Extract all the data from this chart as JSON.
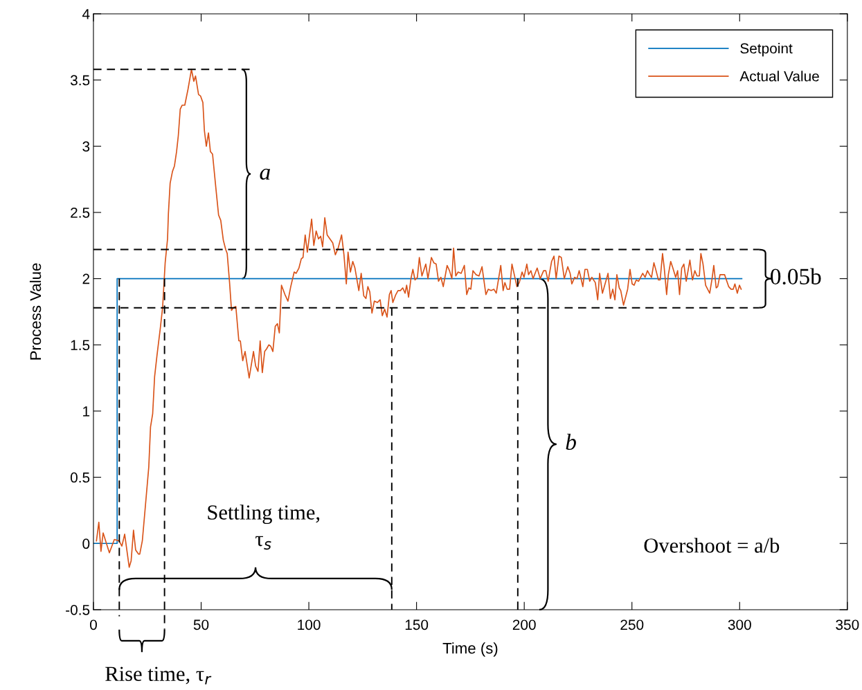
{
  "chart_data": {
    "type": "line",
    "xlabel": "Time (s)",
    "ylabel": "Process Value",
    "xlim": [
      0,
      350
    ],
    "xticks": [
      0,
      50,
      100,
      150,
      200,
      250,
      300,
      350
    ],
    "ylim": [
      -0.5,
      4
    ],
    "yticks": [
      -0.5,
      0,
      0.5,
      1,
      1.5,
      2,
      2.5,
      3,
      3.5,
      4
    ],
    "grid": false,
    "legend": "top right",
    "marker": "none",
    "line_style": "solid",
    "series": [
      {
        "name": "Setpoint",
        "color": "#0072bd",
        "type": "step",
        "x": [
          0,
          11,
          11,
          301
        ],
        "values": [
          0,
          0,
          2,
          2
        ]
      },
      {
        "name": "Actual Value",
        "color": "#d95319",
        "type": "line",
        "x": [
          1.4,
          2.5,
          3.5,
          4.5,
          7.4,
          9.7,
          11.9,
          13.2,
          14.5,
          16.6,
          17.5,
          18.6,
          19.6,
          20.9,
          21.5,
          22.7,
          24.1,
          25.7,
          26.5,
          27.5,
          28.4,
          29.5,
          31,
          32.1,
          33.3,
          34.4,
          34.8,
          35.6,
          36.7,
          37.6,
          38.6,
          39.4,
          40.3,
          41.2,
          42.4,
          43.9,
          45.5,
          46.6,
          47.4,
          48.8,
          49.7,
          50.8,
          51.5,
          52.4,
          53.4,
          54.3,
          55.3,
          56.8,
          58.1,
          59.1,
          60.3,
          61.4,
          62.1,
          63.2,
          64.1,
          64.9,
          66.1,
          67.5,
          68.2,
          69.3,
          70.4,
          72.3,
          74.3,
          75.3,
          76.4,
          77.4,
          78.4,
          79.5,
          80.4,
          81.4,
          82.3,
          83.3,
          84.4,
          85.4,
          86.3,
          87.3,
          88.9,
          90.3,
          91.6,
          93.2,
          94.1,
          95.4,
          96.5,
          97.3,
          98.3,
          99.3,
          101.3,
          102.3,
          103.4,
          104.5,
          105.5,
          106.4,
          107.4,
          108.5,
          109.8,
          111.1,
          112.3,
          113.6,
          115.2,
          116.3,
          117.4,
          118.2,
          119.3,
          120.4,
          121.4,
          123.2,
          124.3,
          125.5,
          126.5,
          127.4,
          128.3,
          129.3,
          130.4,
          131.8,
          133.1,
          134.1,
          135.2,
          136.3,
          137.4,
          138.2,
          139,
          140.4,
          141.4,
          142.5,
          143.6,
          144.7,
          145.4,
          146.3,
          147.4,
          148.3,
          149.3,
          150.4,
          151.3,
          152.5,
          154.3,
          155.3,
          156.9,
          158,
          159.1,
          160.2,
          161.3,
          162.4,
          164.2,
          165.3,
          166.4,
          167.2,
          168.2,
          169.3,
          170.7,
          172.2,
          173.3,
          174.3,
          175.2,
          176.2,
          177.6,
          179,
          180.4,
          182.2,
          183.3,
          184.6,
          185.9,
          187,
          189.1,
          190.2,
          191,
          192.1,
          193.2,
          194.3,
          196.6,
          197.7,
          199,
          199.9,
          201.2,
          202,
          203.1,
          204.1,
          206,
          207.4,
          209,
          210,
          211.1,
          212.7,
          213.8,
          214.8,
          216.1,
          217.2,
          218.6,
          220.2,
          221.3,
          222.1,
          223.4,
          224.5,
          225.5,
          226.1,
          227.2,
          228.2,
          229.3,
          230.4,
          231.4,
          233,
          234.1,
          235,
          236.3,
          238.9,
          240,
          241.1,
          242.1,
          243,
          244.1,
          244.8,
          246.1,
          248,
          249.1,
          250.1,
          251,
          252,
          253.1,
          255,
          256.1,
          257.2,
          258.2,
          259.1,
          260.2,
          261.2,
          262.3,
          263.1,
          264.2,
          265,
          266.1,
          266.9,
          268,
          269,
          270.3,
          271.2,
          272.1,
          273.1,
          274.1,
          275.2,
          276.9,
          278.1,
          279.2,
          280.2,
          281.3,
          282,
          283,
          284.2,
          286.1,
          287.2,
          288,
          289.1,
          289.8,
          290.9,
          291.9,
          293,
          294.9,
          296,
          297,
          297.8,
          298.9,
          299.9,
          300.7
        ],
        "values": [
          0.02,
          0.16,
          -0.06,
          0.08,
          -0.07,
          0.03,
          0.02,
          -0.02,
          0.07,
          -0.18,
          -0.13,
          0.1,
          -0.05,
          -0.08,
          -0.08,
          0.02,
          0.28,
          0.58,
          0.88,
          0.98,
          1.26,
          1.42,
          1.62,
          1.78,
          2.12,
          2.3,
          2.49,
          2.72,
          2.81,
          2.85,
          2.96,
          3.08,
          3.28,
          3.31,
          3.31,
          3.43,
          3.58,
          3.49,
          3.53,
          3.39,
          3.38,
          3.33,
          3.12,
          3.0,
          3.1,
          2.96,
          2.94,
          2.69,
          2.48,
          2.44,
          2.29,
          2.22,
          2.19,
          1.97,
          1.76,
          1.78,
          1.79,
          1.53,
          1.53,
          1.38,
          1.45,
          1.25,
          1.45,
          1.34,
          1.3,
          1.53,
          1.29,
          1.45,
          1.47,
          1.5,
          1.49,
          1.45,
          1.64,
          1.66,
          1.59,
          1.95,
          1.88,
          1.83,
          1.94,
          2.05,
          2.04,
          2.08,
          2.15,
          2.16,
          2.33,
          2.2,
          2.45,
          2.25,
          2.36,
          2.3,
          2.32,
          2.24,
          2.46,
          2.33,
          2.3,
          2.27,
          2.18,
          2.23,
          2.33,
          2.18,
          1.96,
          2.2,
          2.05,
          2.13,
          2.08,
          1.91,
          2.04,
          1.87,
          1.85,
          1.94,
          1.9,
          1.74,
          1.83,
          1.82,
          1.84,
          1.72,
          1.77,
          1.71,
          1.88,
          1.91,
          1.82,
          1.88,
          1.91,
          1.91,
          1.93,
          1.89,
          1.95,
          1.86,
          2.0,
          2.07,
          1.99,
          2.01,
          2.16,
          2.02,
          2.11,
          2.0,
          2.16,
          2.12,
          2.11,
          1.98,
          2.01,
          1.94,
          2.1,
          2.06,
          2.0,
          2.23,
          2.02,
          2.05,
          2.04,
          2.1,
          1.88,
          1.93,
          1.92,
          2.06,
          2.03,
          2.02,
          2.09,
          1.88,
          1.92,
          1.91,
          1.92,
          1.89,
          2.1,
          1.91,
          1.97,
          1.92,
          1.92,
          2.11,
          1.94,
          1.97,
          2.05,
          2.01,
          2.11,
          2.03,
          2.06,
          2.0,
          2.08,
          2.0,
          2.06,
          2.06,
          1.98,
          2.13,
          2.17,
          2.0,
          2.17,
          2.16,
          2.0,
          2.09,
          2.04,
          1.96,
          2.01,
          2.0,
          2.06,
          2.02,
          1.94,
          2.07,
          2.07,
          1.98,
          2.01,
          1.97,
          1.84,
          2.04,
          1.89,
          2.04,
          1.85,
          1.92,
          1.84,
          2.03,
          1.93,
          1.91,
          1.8,
          1.92,
          2.07,
          1.96,
          1.95,
          1.99,
          1.98,
          2.04,
          2.01,
          2.06,
          2.03,
          2.01,
          2.12,
          2.06,
          1.99,
          1.99,
          2.19,
          2.08,
          1.88,
          2.03,
          2.13,
          2.08,
          2.01,
          2.06,
          1.88,
          2.08,
          2.11,
          1.98,
          2.14,
          1.99,
          2.06,
          2.02,
          2.02,
          2.19,
          2.11,
          1.95,
          1.89,
          2.0,
          2.1,
          1.93,
          1.94,
          2.03,
          2.03,
          2.03,
          1.94,
          1.92,
          1.92,
          1.96,
          1.89,
          1.95,
          1.92
        ]
      }
    ],
    "ref_lines": [
      {
        "axis": "y",
        "value": 2.22,
        "color": "#000000",
        "line_style": "dashed"
      },
      {
        "axis": "y",
        "value": 1.78,
        "color": "#000000",
        "line_style": "dashed"
      }
    ],
    "annotations": [
      {
        "text": "a",
        "x": 69,
        "y": 2
      },
      {
        "text": "b",
        "x": 207,
        "y": 2
      },
      "0.05b",
      "Settling time,\nτ$_{s}$",
      "Rise time, τ$_{r}$",
      "Overshoot = a/b"
    ]
  }
}
